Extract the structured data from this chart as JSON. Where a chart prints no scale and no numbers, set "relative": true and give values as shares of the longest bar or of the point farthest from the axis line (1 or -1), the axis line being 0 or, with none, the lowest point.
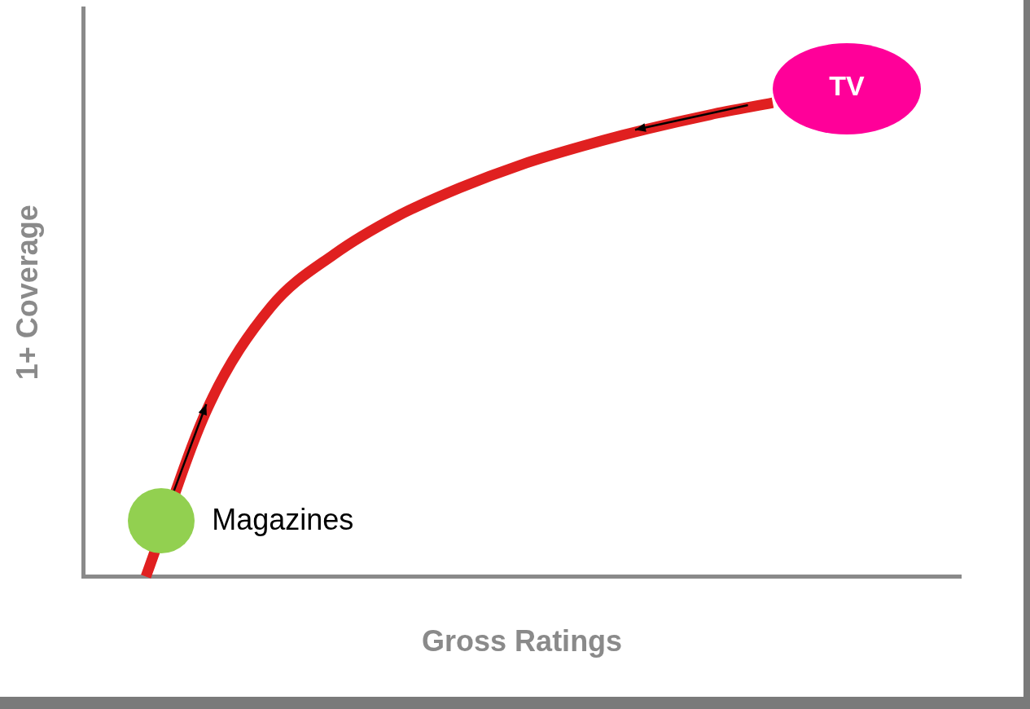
{
  "chart_data": {
    "type": "line",
    "relative": true,
    "xlabel": "Gross Ratings",
    "ylabel": "1+ Coverage",
    "categories": [
      null,
      null,
      null,
      null,
      null,
      null,
      null,
      null,
      null,
      null,
      null,
      null,
      null,
      null,
      null
    ],
    "series": [
      {
        "color": "#e02020",
        "values": [
          null,
          0,
          0.36,
          0.57,
          0.68,
          0.76,
          0.82,
          0.87,
          0.91,
          0.945,
          0.975,
          1,
          null,
          null,
          null
        ]
      }
    ],
    "annotations": [
      "TV",
      "Magazines"
    ],
    "grid": false,
    "legend": false,
    "marker": "none",
    "line_style": "solid"
  }
}
